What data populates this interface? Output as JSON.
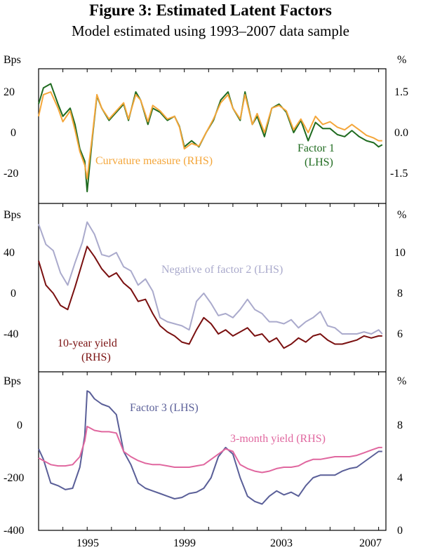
{
  "title": "Figure 3: Estimated Latent Factors",
  "subtitle": "Model estimated using 1993–2007 data sample",
  "colors": {
    "factor1": "#1f6b1f",
    "curvature": "#f4a63a",
    "negfactor2": "#aaaacc",
    "yield10": "#7a1010",
    "factor3": "#5a5f98",
    "yield3m": "#e0679f",
    "axis": "#000000"
  },
  "chart_data": [
    {
      "type": "line",
      "panel": "top",
      "left_unit": "Bps",
      "right_unit": "%",
      "left_ticks": [
        "20",
        "0",
        "-20"
      ],
      "right_ticks": [
        "1.5",
        "0.0",
        "-1.5"
      ],
      "left_ylim": [
        -35,
        35
      ],
      "right_ylim": [
        -2.625,
        2.625
      ],
      "xlim": [
        1993,
        2007.3
      ],
      "series": [
        {
          "name": "Factor 1",
          "axis": "left",
          "color_key": "factor1",
          "label_lines": [
            "Factor 1",
            "(LHS)"
          ],
          "x": [
            1993.0,
            1993.2,
            1993.5,
            1993.8,
            1994.0,
            1994.3,
            1994.5,
            1994.7,
            1994.9,
            1995.0,
            1995.2,
            1995.4,
            1995.6,
            1995.9,
            1996.2,
            1996.5,
            1996.7,
            1997.0,
            1997.2,
            1997.5,
            1997.7,
            1998.0,
            1998.3,
            1998.6,
            1998.8,
            1999.0,
            1999.3,
            1999.6,
            1999.9,
            2000.2,
            2000.5,
            2000.8,
            2001.0,
            2001.3,
            2001.5,
            2001.8,
            2002.0,
            2002.3,
            2002.6,
            2002.9,
            2003.2,
            2003.5,
            2003.8,
            2004.1,
            2004.4,
            2004.7,
            2005.0,
            2005.3,
            2005.6,
            2005.9,
            2006.2,
            2006.5,
            2006.8,
            2007.0,
            2007.15
          ],
          "y": [
            14,
            22,
            24,
            14,
            8,
            12,
            4,
            -8,
            -14,
            -29,
            -4,
            18,
            12,
            6,
            10,
            14,
            6,
            20,
            16,
            4,
            12,
            10,
            6,
            8,
            3,
            -7,
            -4,
            -7,
            0,
            6,
            16,
            20,
            12,
            6,
            20,
            4,
            8,
            -2,
            12,
            14,
            10,
            0,
            6,
            -4,
            5,
            2,
            2,
            -1,
            -2,
            1,
            -2,
            -4,
            -5,
            -7,
            -6
          ]
        },
        {
          "name": "Curvature measure",
          "axis": "right",
          "color_key": "curvature",
          "label_lines": [
            "Curvature measure (RHS)"
          ],
          "x": [
            1993.0,
            1993.2,
            1993.5,
            1993.8,
            1994.0,
            1994.3,
            1994.5,
            1994.7,
            1994.9,
            1995.0,
            1995.2,
            1995.4,
            1995.6,
            1995.9,
            1996.2,
            1996.5,
            1996.7,
            1997.0,
            1997.2,
            1997.5,
            1997.7,
            1998.0,
            1998.3,
            1998.6,
            1998.8,
            1999.0,
            1999.3,
            1999.6,
            1999.9,
            2000.2,
            2000.5,
            2000.8,
            2001.0,
            2001.3,
            2001.5,
            2001.8,
            2002.0,
            2002.3,
            2002.6,
            2002.9,
            2003.2,
            2003.5,
            2003.8,
            2004.1,
            2004.4,
            2004.7,
            2005.0,
            2005.3,
            2005.6,
            2005.9,
            2006.2,
            2006.5,
            2006.8,
            2007.0,
            2007.15
          ],
          "y": [
            0.6,
            1.4,
            1.5,
            0.9,
            0.4,
            0.8,
            0.1,
            -0.7,
            -1.2,
            -1.7,
            -0.2,
            1.4,
            0.9,
            0.5,
            0.8,
            1.1,
            0.5,
            1.4,
            1.2,
            0.4,
            1.0,
            0.8,
            0.5,
            0.6,
            0.2,
            -0.6,
            -0.4,
            -0.5,
            0.0,
            0.5,
            1.1,
            1.4,
            0.9,
            0.5,
            1.4,
            0.3,
            0.7,
            0.0,
            0.9,
            1.0,
            0.8,
            0.1,
            0.5,
            0.0,
            0.6,
            0.3,
            0.4,
            0.2,
            0.1,
            0.3,
            0.1,
            -0.1,
            -0.2,
            -0.3,
            -0.3
          ]
        }
      ]
    },
    {
      "type": "line",
      "panel": "middle",
      "left_unit": "Bps",
      "right_unit": "%",
      "left_ticks": [
        "40",
        "0",
        "-40"
      ],
      "right_ticks": [
        "10",
        "8",
        "6"
      ],
      "left_ylim": [
        -80,
        80
      ],
      "right_ylim": [
        4,
        12
      ],
      "xlim": [
        1993,
        2007.3
      ],
      "series": [
        {
          "name": "Negative of factor 2",
          "axis": "left",
          "color_key": "negfactor2",
          "label_lines": [
            "Negative of factor 2 (LHS)"
          ],
          "x": [
            1993.0,
            1993.3,
            1993.6,
            1993.9,
            1994.2,
            1994.5,
            1994.8,
            1995.0,
            1995.3,
            1995.6,
            1995.9,
            1996.2,
            1996.5,
            1996.8,
            1997.1,
            1997.4,
            1997.7,
            1998.0,
            1998.3,
            1998.6,
            1998.9,
            1999.2,
            1999.5,
            1999.8,
            2000.1,
            2000.4,
            2000.7,
            2001.0,
            2001.3,
            2001.6,
            2001.9,
            2002.2,
            2002.5,
            2002.8,
            2003.1,
            2003.4,
            2003.7,
            2004.0,
            2004.3,
            2004.6,
            2004.9,
            2005.2,
            2005.5,
            2005.8,
            2006.1,
            2006.4,
            2006.7,
            2007.0,
            2007.15
          ],
          "y": [
            68,
            48,
            42,
            20,
            8,
            30,
            50,
            70,
            58,
            38,
            36,
            40,
            26,
            22,
            8,
            14,
            2,
            -24,
            -28,
            -30,
            -32,
            -36,
            -8,
            0,
            -10,
            -22,
            -20,
            -24,
            -16,
            -6,
            -16,
            -20,
            -28,
            -28,
            -30,
            -26,
            -34,
            -28,
            -24,
            -18,
            -32,
            -34,
            -40,
            -40,
            -40,
            -38,
            -40,
            -36,
            -40
          ]
        },
        {
          "name": "10-year yield",
          "axis": "right",
          "color_key": "yield10",
          "label_lines": [
            "10-year yield",
            "(RHS)"
          ],
          "x": [
            1993.0,
            1993.3,
            1993.6,
            1993.9,
            1994.2,
            1994.5,
            1994.8,
            1995.0,
            1995.3,
            1995.6,
            1995.9,
            1996.2,
            1996.5,
            1996.8,
            1997.1,
            1997.4,
            1997.7,
            1998.0,
            1998.3,
            1998.6,
            1998.9,
            1999.2,
            1999.5,
            1999.8,
            2000.1,
            2000.4,
            2000.7,
            2001.0,
            2001.3,
            2001.6,
            2001.9,
            2002.2,
            2002.5,
            2002.8,
            2003.1,
            2003.4,
            2003.7,
            2004.0,
            2004.3,
            2004.6,
            2004.9,
            2005.2,
            2005.5,
            2005.8,
            2006.1,
            2006.4,
            2006.7,
            2007.0,
            2007.15
          ],
          "y": [
            9.6,
            8.4,
            8.0,
            7.4,
            7.2,
            8.3,
            9.5,
            10.3,
            9.8,
            9.2,
            8.8,
            9.0,
            8.5,
            8.2,
            7.6,
            7.7,
            7.0,
            6.4,
            6.1,
            5.9,
            5.6,
            5.5,
            6.2,
            6.8,
            6.5,
            6.0,
            6.2,
            5.9,
            6.1,
            6.3,
            5.9,
            6.0,
            5.6,
            5.8,
            5.3,
            5.5,
            5.8,
            5.6,
            5.9,
            6.0,
            5.7,
            5.5,
            5.5,
            5.6,
            5.7,
            5.9,
            5.8,
            5.9,
            5.9
          ]
        }
      ]
    },
    {
      "type": "line",
      "panel": "bottom",
      "left_unit": "Bps",
      "right_unit": "%",
      "left_ticks": [
        "0",
        "-200",
        "-400"
      ],
      "right_ticks": [
        "8",
        "4",
        "0"
      ],
      "left_ylim": [
        -400,
        180
      ],
      "right_ylim": [
        0,
        11.6
      ],
      "xlim": [
        1993,
        2007.3
      ],
      "x_ticks": [
        "1995",
        "1999",
        "2003",
        "2007"
      ],
      "x_tick_values": [
        1995,
        1999,
        2003,
        2007
      ],
      "series": [
        {
          "name": "Factor 3",
          "axis": "left",
          "color_key": "factor3",
          "label_lines": [
            "Factor 3 (LHS)"
          ],
          "x": [
            1993.0,
            1993.2,
            1993.5,
            1993.8,
            1994.1,
            1994.4,
            1994.7,
            1994.9,
            1995.0,
            1995.1,
            1995.3,
            1995.6,
            1995.9,
            1996.2,
            1996.5,
            1996.8,
            1997.1,
            1997.4,
            1997.7,
            1998.0,
            1998.3,
            1998.6,
            1998.9,
            1999.2,
            1999.5,
            1999.8,
            2000.1,
            2000.4,
            2000.7,
            2001.0,
            2001.3,
            2001.6,
            2001.9,
            2002.2,
            2002.5,
            2002.8,
            2003.1,
            2003.4,
            2003.7,
            2004.0,
            2004.3,
            2004.6,
            2004.9,
            2005.2,
            2005.5,
            2005.8,
            2006.1,
            2006.4,
            2006.7,
            2007.0,
            2007.15
          ],
          "y": [
            -90,
            -130,
            -220,
            -230,
            -245,
            -240,
            -160,
            -40,
            130,
            125,
            100,
            80,
            70,
            40,
            -100,
            -150,
            -220,
            -240,
            -250,
            -260,
            -270,
            -280,
            -275,
            -260,
            -255,
            -240,
            -200,
            -120,
            -85,
            -110,
            -200,
            -270,
            -290,
            -300,
            -270,
            -250,
            -265,
            -255,
            -270,
            -230,
            -200,
            -190,
            -190,
            -190,
            -175,
            -165,
            -160,
            -140,
            -120,
            -100,
            -100
          ]
        },
        {
          "name": "3-month yield",
          "axis": "right",
          "color_key": "yield3m",
          "label_lines": [
            "3-month yield (RHS)"
          ],
          "x": [
            1993.0,
            1993.2,
            1993.5,
            1993.8,
            1994.1,
            1994.4,
            1994.7,
            1994.9,
            1995.0,
            1995.1,
            1995.3,
            1995.6,
            1995.9,
            1996.2,
            1996.5,
            1996.8,
            1997.1,
            1997.4,
            1997.7,
            1998.0,
            1998.3,
            1998.6,
            1998.9,
            1999.2,
            1999.5,
            1999.8,
            2000.1,
            2000.4,
            2000.7,
            2001.0,
            2001.3,
            2001.6,
            2001.9,
            2002.2,
            2002.5,
            2002.8,
            2003.1,
            2003.4,
            2003.7,
            2004.0,
            2004.3,
            2004.6,
            2004.9,
            2005.2,
            2005.5,
            2005.8,
            2006.1,
            2006.4,
            2006.7,
            2007.0,
            2007.15
          ],
          "y": [
            5.5,
            5.3,
            5.0,
            4.9,
            4.9,
            5.0,
            5.6,
            6.8,
            7.9,
            7.8,
            7.6,
            7.5,
            7.5,
            7.4,
            6.0,
            5.6,
            5.3,
            5.1,
            5.0,
            5.0,
            4.9,
            4.8,
            4.8,
            4.8,
            4.9,
            5.0,
            5.4,
            5.8,
            6.2,
            6.0,
            5.0,
            4.7,
            4.5,
            4.4,
            4.5,
            4.7,
            4.8,
            4.8,
            4.9,
            5.2,
            5.4,
            5.4,
            5.5,
            5.6,
            5.6,
            5.6,
            5.7,
            5.9,
            6.1,
            6.3,
            6.3
          ]
        }
      ]
    }
  ]
}
